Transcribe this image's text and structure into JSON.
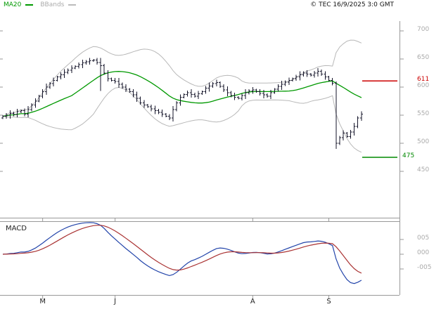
{
  "header": {
    "legend": [
      {
        "label": "MA20",
        "color": "#009900"
      },
      {
        "label": "BBands",
        "color": "#aaaaaa"
      }
    ],
    "copyright": "© TEC 16/9/2025 3:0 GMT"
  },
  "price_axis": {
    "ticks": [
      "700",
      "650",
      "600",
      "550",
      "500",
      "450"
    ],
    "tick_values": [
      700,
      650,
      600,
      550,
      500,
      450
    ]
  },
  "levels": [
    {
      "label": "611",
      "value": 611,
      "color": "#cc0000",
      "role": "resistance"
    },
    {
      "label": "475",
      "value": 475,
      "color": "#008800",
      "role": "support"
    }
  ],
  "macd": {
    "label": "MACD",
    "ticks": [
      "005",
      "000",
      "-005"
    ],
    "line_color": "#2244aa",
    "signal_color": "#aa3333"
  },
  "months": [
    {
      "label": "M",
      "index": 11
    },
    {
      "label": "J",
      "index": 31
    },
    {
      "label": "A",
      "index": 69
    },
    {
      "label": "S",
      "index": 90
    }
  ],
  "chart_data": {
    "type": "ohlc",
    "title": "",
    "indicators": [
      "MA20",
      "BollingerBands(20,2)",
      "MACD(12,26,9)"
    ],
    "price_range": [
      450,
      700
    ],
    "bar_color": "#15152a",
    "band_color": "#b8b8b8",
    "ma_color": "#009900",
    "closes": [
      548,
      550,
      553,
      551,
      556,
      558,
      552,
      560,
      568,
      575,
      584,
      592,
      600,
      606,
      612,
      618,
      622,
      626,
      630,
      634,
      637,
      640,
      643,
      645,
      647,
      648,
      644,
      638,
      625,
      615,
      612,
      610,
      605,
      600,
      596,
      592,
      586,
      580,
      572,
      568,
      565,
      561,
      558,
      555,
      552,
      548,
      545,
      560,
      572,
      582,
      587,
      590,
      587,
      584,
      588,
      592,
      598,
      602,
      606,
      608,
      601,
      595,
      590,
      585,
      582,
      580,
      585,
      590,
      593,
      595,
      592,
      589,
      586,
      584,
      590,
      596,
      601,
      605,
      609,
      612,
      615,
      618,
      622,
      625,
      623,
      621,
      625,
      628,
      623,
      618,
      612,
      607,
      500,
      510,
      518,
      512,
      520,
      530,
      545,
      552
    ],
    "overrides": {
      "27": [
        652,
        593
      ],
      "92": [
        610,
        490
      ]
    }
  }
}
